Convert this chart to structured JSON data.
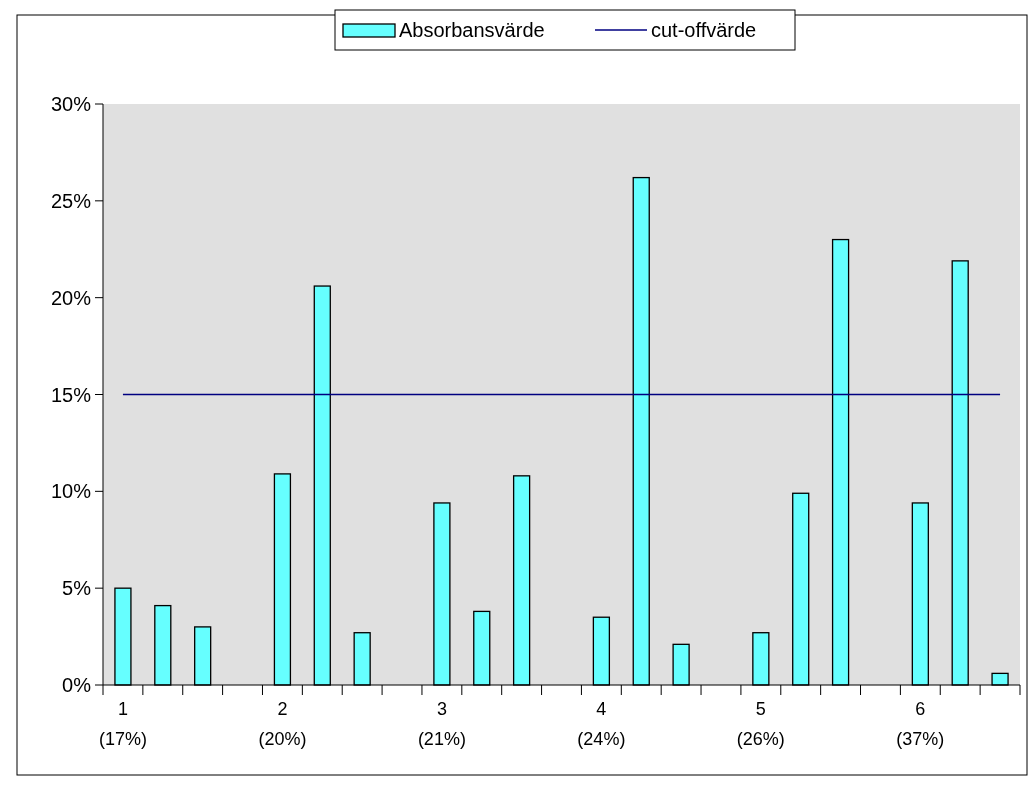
{
  "chart_data": {
    "type": "bar",
    "categories": [
      "1 (17%)",
      null,
      null,
      null,
      "2 (20%)",
      null,
      null,
      null,
      "3 (21%)",
      null,
      null,
      null,
      "4 (24%)",
      null,
      null,
      null,
      "5 (26%)",
      null,
      null,
      null,
      "6 (37%)",
      null,
      null
    ],
    "series": [
      {
        "name": "Absorbansvärde",
        "color": "#66ffff",
        "values": [
          5.0,
          4.1,
          3.0,
          null,
          10.9,
          20.6,
          2.7,
          null,
          9.4,
          3.8,
          10.8,
          null,
          3.5,
          26.2,
          2.1,
          null,
          2.7,
          9.9,
          23.0,
          null,
          9.4,
          21.9,
          0.6
        ]
      },
      {
        "name": "cut-offvärde",
        "type": "line",
        "color": "#000080",
        "values": [
          15,
          15,
          15,
          15,
          15,
          15,
          15,
          15,
          15,
          15,
          15,
          15,
          15,
          15,
          15,
          15,
          15,
          15,
          15,
          15,
          15,
          15,
          15
        ]
      }
    ],
    "ylim": [
      0,
      30
    ],
    "yticks": [
      {
        "value": 0,
        "label": "0%"
      },
      {
        "value": 5,
        "label": "5%"
      },
      {
        "value": 10,
        "label": "10%"
      },
      {
        "value": 15,
        "label": "15%"
      },
      {
        "value": 20,
        "label": "20%"
      },
      {
        "value": 25,
        "label": "25%"
      },
      {
        "value": 30,
        "label": "30%"
      }
    ],
    "grid": false,
    "legend": "top"
  }
}
